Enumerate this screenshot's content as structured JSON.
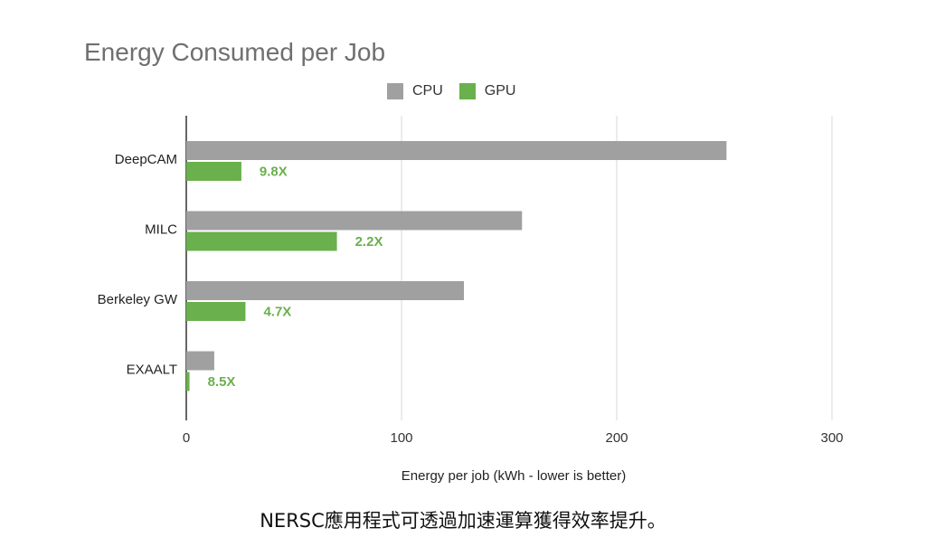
{
  "chart_data": {
    "type": "bar",
    "orientation": "horizontal",
    "title": "Energy Consumed per Job",
    "xlabel": "Energy per job (kWh - lower is better)",
    "ylabel": "",
    "categories": [
      "DeepCAM",
      "MILC",
      "Berkeley GW",
      "EXAALT"
    ],
    "series": [
      {
        "name": "CPU",
        "color": "#a0a0a0",
        "values": [
          251,
          156,
          129,
          13
        ]
      },
      {
        "name": "GPU",
        "color": "#6ab04c",
        "values": [
          25.6,
          70,
          27.5,
          1.5
        ]
      }
    ],
    "speedup_labels": [
      "9.8X",
      "2.2X",
      "4.7X",
      "8.5X"
    ],
    "speedup_label_color": "#6ab04c",
    "xlim": [
      0,
      300
    ],
    "xticks": [
      0,
      100,
      200,
      300
    ],
    "grid": true,
    "legend_position": "top"
  },
  "caption": "NERSC應用程式可透過加速運算獲得效率提升。"
}
